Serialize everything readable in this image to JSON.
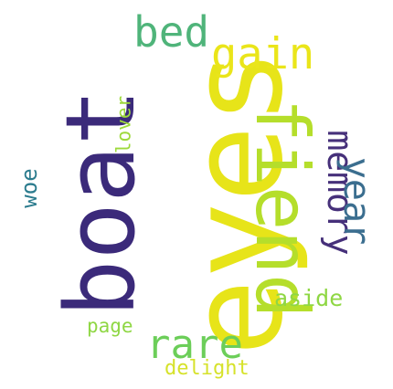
{
  "word_cloud": {
    "words": [
      {
        "id": "eyes",
        "text": "eyes",
        "color": "#e7e419",
        "orientation": "vertical"
      },
      {
        "id": "boat",
        "text": "boat",
        "color": "#3b2a7a",
        "orientation": "vertical"
      },
      {
        "id": "fiend",
        "text": "fiend",
        "color": "#b5de2b",
        "orientation": "vertical"
      },
      {
        "id": "bed",
        "text": "bed",
        "color": "#4fb47a",
        "orientation": "horizontal"
      },
      {
        "id": "gain",
        "text": "gain",
        "color": "#eae51a",
        "orientation": "horizontal"
      },
      {
        "id": "memory",
        "text": "memory",
        "color": "#46307a",
        "orientation": "vertical"
      },
      {
        "id": "year",
        "text": "year",
        "color": "#3b6e8f",
        "orientation": "vertical"
      },
      {
        "id": "lover",
        "text": "lover",
        "color": "#9dd93b",
        "orientation": "vertical"
      },
      {
        "id": "woe",
        "text": "woe",
        "color": "#2c7c8e",
        "orientation": "vertical"
      },
      {
        "id": "aside",
        "text": "aside",
        "color": "#8fd744",
        "orientation": "horizontal"
      },
      {
        "id": "page",
        "text": "page",
        "color": "#8fd744",
        "orientation": "horizontal"
      },
      {
        "id": "rare",
        "text": "rare",
        "color": "#6cce59",
        "orientation": "horizontal"
      },
      {
        "id": "delight",
        "text": "delight",
        "color": "#d6e22b",
        "orientation": "horizontal"
      }
    ]
  }
}
